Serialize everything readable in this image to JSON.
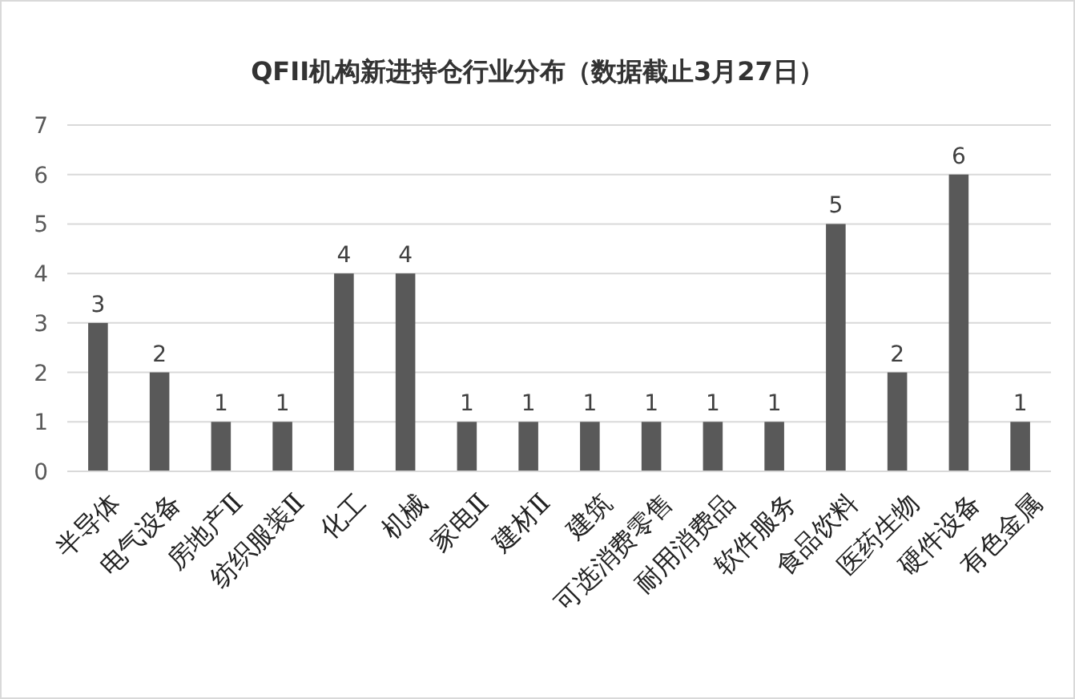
{
  "chart_data": {
    "type": "bar",
    "title": "QFII机构新进持仓行业分布（数据截止3月27日）",
    "categories": [
      "半导体",
      "电气设备",
      "房地产Ⅱ",
      "纺织服装Ⅱ",
      "化工",
      "机械",
      "家电Ⅱ",
      "建材Ⅱ",
      "建筑",
      "可选消费零售",
      "耐用消费品",
      "软件服务",
      "食品饮料",
      "医药生物",
      "硬件设备",
      "有色金属"
    ],
    "values": [
      3,
      2,
      1,
      1,
      4,
      4,
      1,
      1,
      1,
      1,
      1,
      1,
      5,
      2,
      6,
      1
    ],
    "color": "#595959",
    "ylim": [
      0,
      7
    ],
    "yticks": [
      0,
      1,
      2,
      3,
      4,
      5,
      6,
      7
    ],
    "grid": "y",
    "data_labels": true
  }
}
